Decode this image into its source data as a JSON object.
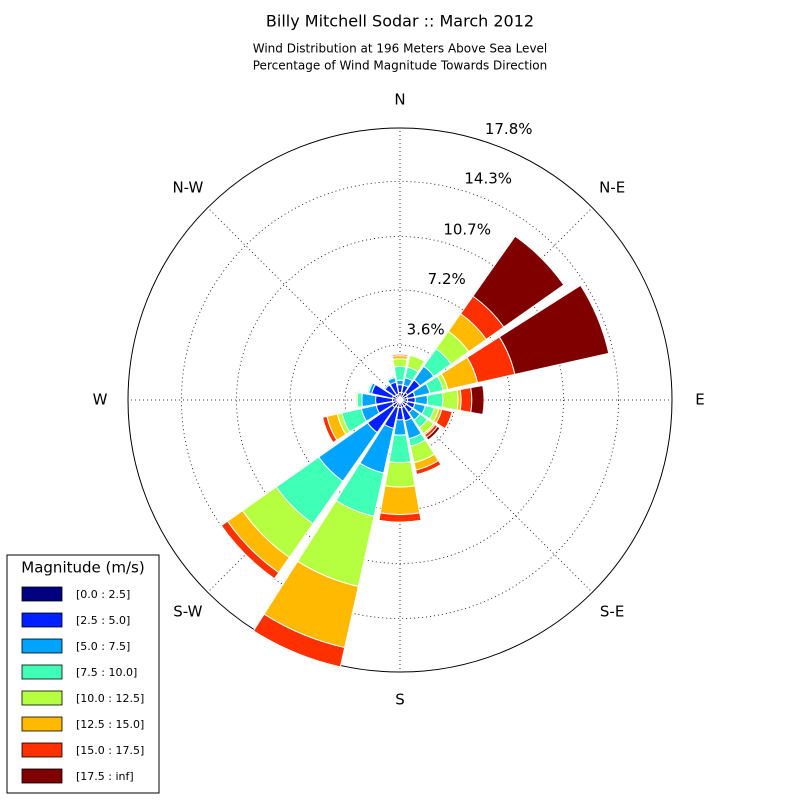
{
  "chart_data": {
    "type": "windrose",
    "title": "Billy Mitchell Sodar :: March 2012",
    "subtitle": [
      "Wind Distribution at 196 Meters Above Sea Level",
      "Percentage of Wind Magnitude Towards Direction"
    ],
    "categories": [
      "N",
      null,
      "N-E",
      null,
      "E",
      null,
      "S-E",
      null,
      "S",
      null,
      "S-W",
      null,
      "W",
      null,
      "N-W",
      null
    ],
    "ylim": [
      0,
      17.8
    ],
    "yticks": [
      {
        "value": 3.6,
        "label": "3.6%"
      },
      {
        "value": 7.2,
        "label": "7.2%"
      },
      {
        "value": 10.7,
        "label": "10.7%"
      },
      {
        "value": 14.3,
        "label": "14.3%"
      },
      {
        "value": 17.8,
        "label": "17.8%"
      }
    ],
    "grid": true,
    "legend_title": "Magnitude (m/s)",
    "legend_position": "lower left",
    "series": [
      {
        "name": "[0.0 : 2.5]",
        "color": "#000080",
        "values": [
          0.5,
          0.5,
          0.6,
          0.5,
          0.5,
          0.5,
          0.5,
          0.5,
          0.5,
          0.5,
          0.6,
          0.5,
          0.5,
          0.5,
          0.4,
          0.4
        ]
      },
      {
        "name": "[2.5 : 5.0]",
        "color": "#0020ff",
        "values": [
          0.5,
          0.5,
          1.0,
          0.5,
          0.5,
          0.5,
          0.5,
          0.9,
          0.8,
          1.4,
          2.0,
          1.1,
          1.1,
          1.4,
          0.8,
          0.8
        ]
      },
      {
        "name": "[5.0 : 7.5]",
        "color": "#00a4ff",
        "values": [
          0.3,
          0.5,
          1.1,
          1.0,
          0.8,
          0.7,
          0.6,
          1.2,
          1.0,
          3.0,
          3.9,
          1.0,
          0.9,
          0.2,
          0.1,
          0.3
        ]
      },
      {
        "name": "[7.5 : 10.0]",
        "color": "#40ffb6",
        "values": [
          0.9,
          0.7,
          1.4,
          0.9,
          1.0,
          0.6,
          0.6,
          0.5,
          1.8,
          2.9,
          3.4,
          1.3,
          0.3,
          0.1,
          0,
          0.1
        ]
      },
      {
        "name": "[10.0 : 12.5]",
        "color": "#b6ff40",
        "values": [
          0.5,
          0.8,
          1.4,
          0.3,
          1.0,
          0.3,
          0.5,
          1.1,
          1.6,
          4.7,
          2.7,
          0.3,
          0.1,
          0,
          0,
          0
        ]
      },
      {
        "name": "[12.5 : 15.0]",
        "color": "#ffb900",
        "values": [
          0.2,
          0,
          1.4,
          2.0,
          0.2,
          0.2,
          0.1,
          0.5,
          1.8,
          4.1,
          1.2,
          0.7,
          0,
          0,
          0,
          0
        ]
      },
      {
        "name": "[15.0 : 17.5]",
        "color": "#ff3000",
        "values": [
          0.1,
          0,
          1.4,
          2.5,
          0.7,
          0.7,
          0.2,
          0.3,
          0.5,
          1.3,
          0.5,
          0.3,
          0,
          0,
          0,
          0
        ]
      },
      {
        "name": "[17.5 : inf]",
        "color": "#800000",
        "values": [
          0,
          0,
          4.8,
          6.3,
          0.8,
          0,
          0.2,
          0,
          0,
          0,
          0,
          0,
          0,
          0,
          0,
          0
        ]
      }
    ]
  }
}
